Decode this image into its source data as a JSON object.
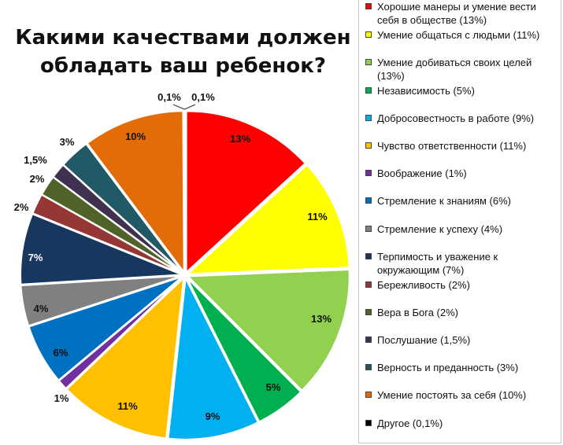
{
  "chart_data": {
    "type": "pie",
    "title": "Какими качествами должен обладать ваш ребенок?",
    "title_lines": [
      "Какими качествами должен",
      "обладать ваш ребенок?"
    ],
    "legend_position": "right",
    "slices": [
      {
        "label": "Хорошие манеры и умение вести себя в обществе (13%)",
        "value": 13,
        "data_label": "13%",
        "color": "#ff0000",
        "label_color": "#111111"
      },
      {
        "label": "Умение общаться с людьми (11%)",
        "value": 11,
        "data_label": "11%",
        "color": "#ffff00",
        "label_color": "#111111"
      },
      {
        "label": "Умение добиваться своих целей (13%)",
        "value": 13,
        "data_label": "13%",
        "color": "#92d050",
        "label_color": "#111111"
      },
      {
        "label": "Независимость (5%)",
        "value": 5,
        "data_label": "5%",
        "color": "#00b050",
        "label_color": "#111111"
      },
      {
        "label": "Добросовестность в работе (9%)",
        "value": 9,
        "data_label": "9%",
        "color": "#00b0f0",
        "label_color": "#111111"
      },
      {
        "label": "Чувство ответственности (11%)",
        "value": 11,
        "data_label": "11%",
        "color": "#ffc000",
        "label_color": "#111111"
      },
      {
        "label": "Воображение (1%)",
        "value": 1,
        "data_label": "1%",
        "color": "#7030a0",
        "label_color": "#111111"
      },
      {
        "label": "Стремление к знаниям (6%)",
        "value": 6,
        "data_label": "6%",
        "color": "#0070c0",
        "label_color": "#111111"
      },
      {
        "label": "Стремление к успеху (4%)",
        "value": 4,
        "data_label": "4%",
        "color": "#808080",
        "label_color": "#111111"
      },
      {
        "label": "Терпимость и уважение к окружающим (7%)",
        "value": 7,
        "data_label": "7%",
        "color": "#17375e",
        "label_color": "#ffffff"
      },
      {
        "label": "Бережливость (2%)",
        "value": 2,
        "data_label": "2%",
        "color": "#953735",
        "label_color": "#111111"
      },
      {
        "label": "Вера в Бога (2%)",
        "value": 2,
        "data_label": "2%",
        "color": "#4f6228",
        "label_color": "#111111"
      },
      {
        "label": "Послушание (1,5%)",
        "value": 1.5,
        "data_label": "1,5%",
        "color": "#403151",
        "label_color": "#111111"
      },
      {
        "label": "Верность и преданность (3%)",
        "value": 3,
        "data_label": "3%",
        "color": "#215967",
        "label_color": "#111111"
      },
      {
        "label": "Умение постоять за себя (10%)",
        "value": 10,
        "data_label": "10%",
        "color": "#e36c09",
        "label_color": "#111111"
      },
      {
        "label": "Другое (0,1%)",
        "value": 0.1,
        "data_label": "0,1%",
        "color": "#000000",
        "label_color": "#111111"
      }
    ],
    "extra_label": "0,1%"
  }
}
